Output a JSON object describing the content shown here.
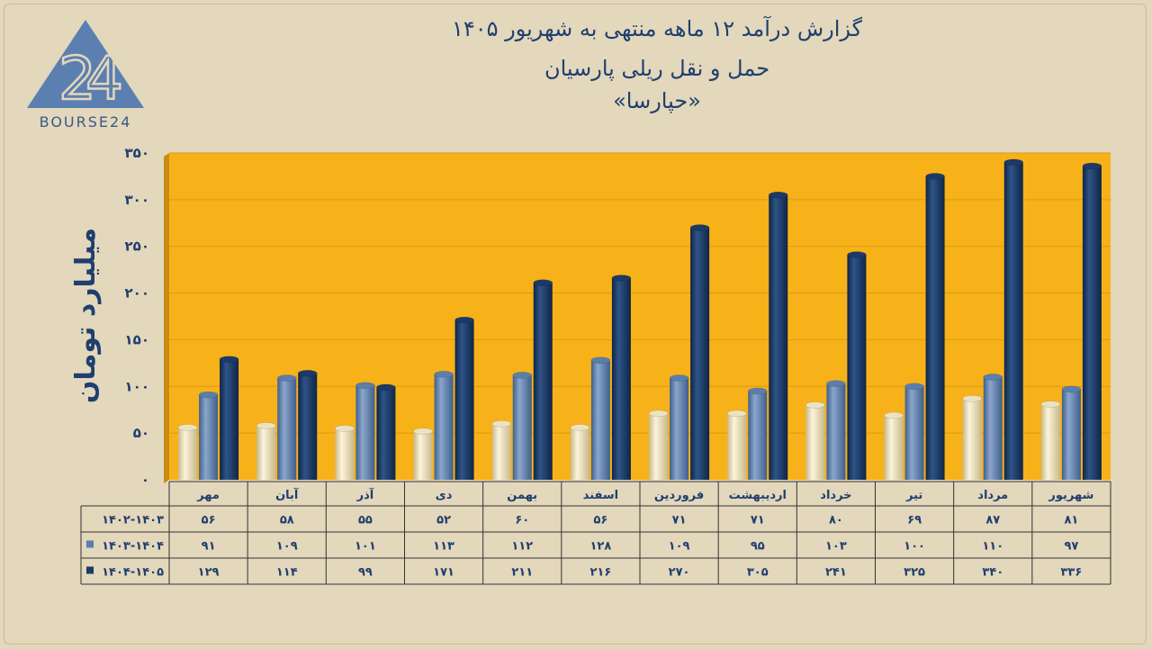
{
  "logo": {
    "text": "BOURSE24",
    "colors": [
      "#5b7fb0",
      "#3b5a86"
    ]
  },
  "title": {
    "line1": "گزارش  درآمد ۱۲ ماهه منتهی به شهریور ۱۴۰۵",
    "line2": "حمل و نقل ریلی پارسیان",
    "line3": "«حپارسا»"
  },
  "chart_data": {
    "type": "bar",
    "ylabel": "میلیارد تومان",
    "ylim": [
      0,
      350
    ],
    "yticks": [
      0,
      50,
      100,
      150,
      200,
      250,
      300,
      350
    ],
    "ytick_labels": [
      "۰",
      "۵۰",
      "۱۰۰",
      "۱۵۰",
      "۲۰۰",
      "۲۵۰",
      "۳۰۰",
      "۳۵۰"
    ],
    "grid": true,
    "background": "#f7b21a",
    "categories": [
      "مهر",
      "آبان",
      "آذر",
      "دی",
      "بهمن",
      "اسفند",
      "فروردین",
      "اردیبهشت",
      "خرداد",
      "تیر",
      "مرداد",
      "شهریور"
    ],
    "series": [
      {
        "name": "۱۴۰۲-۱۴۰۳",
        "color": "#ede2bf",
        "values": [
          56,
          58,
          55,
          52,
          60,
          56,
          71,
          71,
          80,
          69,
          87,
          81
        ],
        "labels": [
          "۵۶",
          "۵۸",
          "۵۵",
          "۵۲",
          "۶۰",
          "۵۶",
          "۷۱",
          "۷۱",
          "۸۰",
          "۶۹",
          "۸۷",
          "۸۱"
        ]
      },
      {
        "name": "۱۴۰۳-۱۴۰۴",
        "color": "#5c7eaa",
        "values": [
          91,
          109,
          101,
          113,
          112,
          128,
          109,
          95,
          103,
          100,
          110,
          97
        ],
        "labels": [
          "۹۱",
          "۱۰۹",
          "۱۰۱",
          "۱۱۳",
          "۱۱۲",
          "۱۲۸",
          "۱۰۹",
          "۹۵",
          "۱۰۳",
          "۱۰۰",
          "۱۱۰",
          "۹۷"
        ]
      },
      {
        "name": "۱۴۰۴-۱۴۰۵",
        "color": "#1d3a66",
        "values": [
          129,
          114,
          99,
          171,
          211,
          216,
          270,
          305,
          241,
          325,
          340,
          336
        ],
        "labels": [
          "۱۲۹",
          "۱۱۴",
          "۹۹",
          "۱۷۱",
          "۲۱۱",
          "۲۱۶",
          "۲۷۰",
          "۳۰۵",
          "۲۴۱",
          "۳۲۵",
          "۳۴۰",
          "۳۳۶"
        ]
      }
    ]
  }
}
